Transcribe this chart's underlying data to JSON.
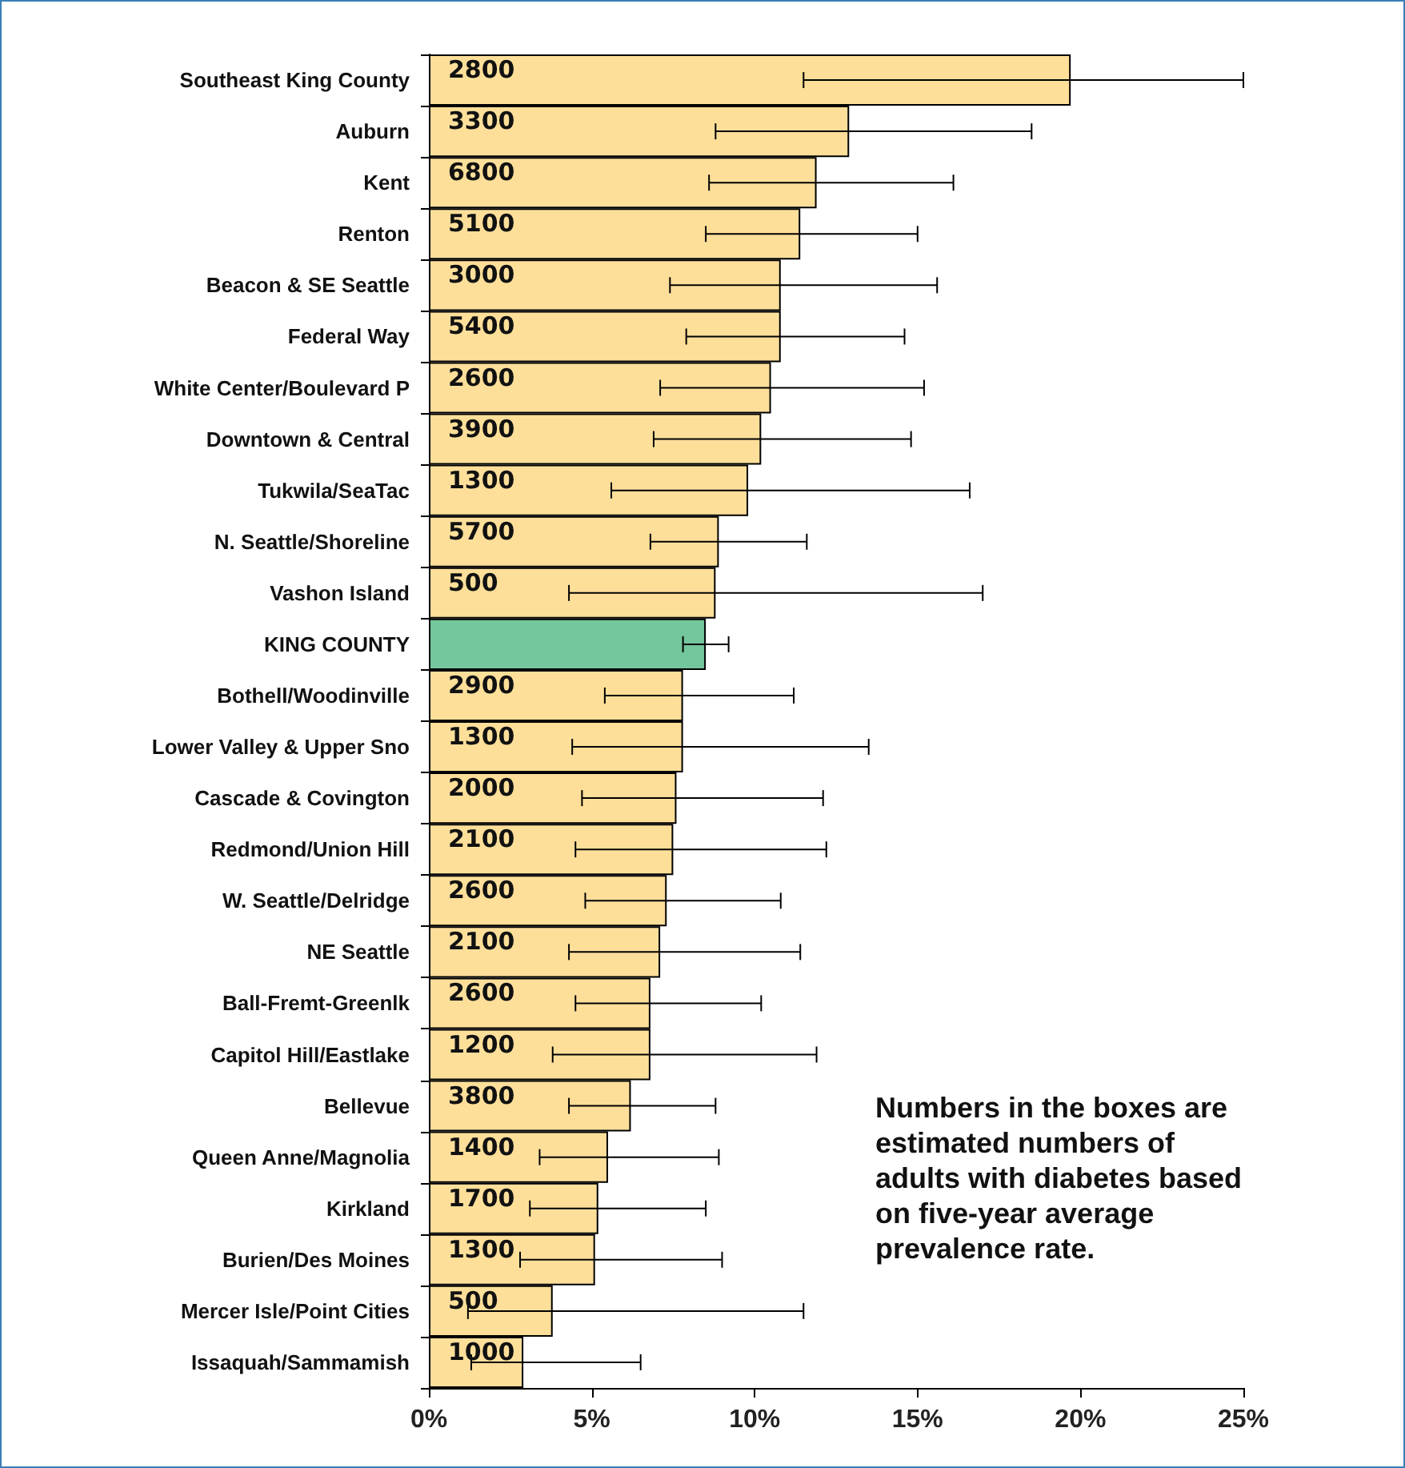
{
  "chart_data": {
    "type": "bar",
    "orientation": "horizontal",
    "categories": [
      "Southeast King County",
      "Auburn",
      "Kent",
      "Renton",
      "Beacon & SE Seattle",
      "Federal Way",
      "White Center/Boulevard P",
      "Downtown & Central",
      "Tukwila/SeaTac",
      "N. Seattle/Shoreline",
      "Vashon Island",
      "KING COUNTY",
      "Bothell/Woodinville",
      "Lower Valley & Upper Sno",
      "Cascade & Covington",
      "Redmond/Union Hill",
      "W. Seattle/Delridge",
      "NE Seattle",
      "Ball-Fremt-Greenlk",
      "Capitol Hill/Eastlake",
      "Bellevue",
      "Queen Anne/Magnolia",
      "Kirkland",
      "Burien/Des Moines",
      "Mercer Isle/Point Cities",
      "Issaquah/Sammamish"
    ],
    "values": [
      19.7,
      12.9,
      11.9,
      11.4,
      10.8,
      10.8,
      10.5,
      10.2,
      9.8,
      8.9,
      8.8,
      8.5,
      7.8,
      7.8,
      7.6,
      7.5,
      7.3,
      7.1,
      6.8,
      6.8,
      6.2,
      5.5,
      5.2,
      5.1,
      3.8,
      2.9
    ],
    "errors": [
      [
        11.5,
        25.0
      ],
      [
        8.8,
        18.5
      ],
      [
        8.6,
        16.1
      ],
      [
        8.5,
        15.0
      ],
      [
        7.4,
        15.6
      ],
      [
        7.9,
        14.6
      ],
      [
        7.1,
        15.2
      ],
      [
        6.9,
        14.8
      ],
      [
        5.6,
        16.6
      ],
      [
        6.8,
        11.6
      ],
      [
        4.3,
        17.0
      ],
      [
        7.8,
        9.2
      ],
      [
        5.4,
        11.2
      ],
      [
        4.4,
        13.5
      ],
      [
        4.7,
        12.1
      ],
      [
        4.5,
        12.2
      ],
      [
        4.8,
        10.8
      ],
      [
        4.3,
        11.4
      ],
      [
        4.5,
        10.2
      ],
      [
        3.8,
        11.9
      ],
      [
        4.3,
        8.8
      ],
      [
        3.4,
        8.9
      ],
      [
        3.1,
        8.5
      ],
      [
        2.8,
        9.0
      ],
      [
        1.2,
        11.5
      ],
      [
        1.3,
        6.5
      ]
    ],
    "colors": [
      "#fddf9a",
      "#fddf9a",
      "#fddf9a",
      "#fddf9a",
      "#fddf9a",
      "#fddf9a",
      "#fddf9a",
      "#fddf9a",
      "#fddf9a",
      "#fddf9a",
      "#fddf9a",
      "#74c69d",
      "#fddf9a",
      "#fddf9a",
      "#fddf9a",
      "#fddf9a",
      "#fddf9a",
      "#fddf9a",
      "#fddf9a",
      "#fddf9a",
      "#fddf9a",
      "#fddf9a",
      "#fddf9a",
      "#fddf9a",
      "#fddf9a",
      "#fddf9a"
    ],
    "xlim": [
      0,
      25
    ],
    "xticks": [
      {
        "value": 0,
        "label": "0%"
      },
      {
        "value": 5,
        "label": "5%"
      },
      {
        "value": 10,
        "label": "10%"
      },
      {
        "value": 15,
        "label": "15%"
      },
      {
        "value": 20,
        "label": "20%"
      },
      {
        "value": 25,
        "label": "25%"
      }
    ],
    "grid": false,
    "annotations": [
      "Numbers in the boxes are estimated numbers of adults with diabetes based on five-year average prevalence rate.",
      {
        "text": "2800",
        "y": "Southeast King County"
      },
      {
        "text": "3300",
        "y": "Auburn"
      },
      {
        "text": "6800",
        "y": "Kent"
      },
      {
        "text": "5100",
        "y": "Renton"
      },
      {
        "text": "3000",
        "y": "Beacon & SE Seattle"
      },
      {
        "text": "5400",
        "y": "Federal Way"
      },
      {
        "text": "2600",
        "y": "White Center/Boulevard P"
      },
      {
        "text": "3900",
        "y": "Downtown & Central"
      },
      {
        "text": "1300",
        "y": "Tukwila/SeaTac"
      },
      {
        "text": "5700",
        "y": "N. Seattle/Shoreline"
      },
      {
        "text": "500",
        "y": "Vashon Island"
      },
      {
        "text": "2900",
        "y": "Bothell/Woodinville"
      },
      {
        "text": "1300",
        "y": "Lower Valley & Upper Sno"
      },
      {
        "text": "2000",
        "y": "Cascade & Covington"
      },
      {
        "text": "2100",
        "y": "Redmond/Union Hill"
      },
      {
        "text": "2600",
        "y": "W. Seattle/Delridge"
      },
      {
        "text": "2100",
        "y": "NE Seattle"
      },
      {
        "text": "2600",
        "y": "Ball-Fremt-Greenlk"
      },
      {
        "text": "1200",
        "y": "Capitol Hill/Eastlake"
      },
      {
        "text": "3800",
        "y": "Bellevue"
      },
      {
        "text": "1400",
        "y": "Queen Anne/Magnolia"
      },
      {
        "text": "1700",
        "y": "Kirkland"
      },
      {
        "text": "1300",
        "y": "Burien/Des Moines"
      },
      {
        "text": "500",
        "y": "Mercer Isle/Point Cities"
      },
      {
        "text": "1000",
        "y": "Issaquah/Sammamish"
      }
    ]
  }
}
